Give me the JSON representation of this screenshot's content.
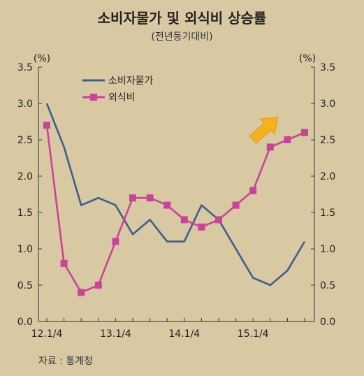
{
  "chart_data": {
    "type": "line",
    "title": "소비자물가 및 외식비 상승률",
    "subtitle": "(전년동기대비)",
    "left_unit": "(%)",
    "right_unit": "(%)",
    "source": "자료 : 통계청",
    "x": [
      "12.1/4",
      "12.2/4",
      "12.3/4",
      "12.4/4",
      "13.1/4",
      "13.2/4",
      "13.3/4",
      "13.4/4",
      "14.1/4",
      "14.2/4",
      "14.3/4",
      "14.4/4",
      "15.1/4",
      "15.2/4",
      "15.3/4",
      "15.4/4"
    ],
    "xtick_labels": [
      "12.1/4",
      "13.1/4",
      "14.1/4",
      "15.1/4"
    ],
    "xtick_index": [
      0,
      4,
      8,
      12
    ],
    "yticks": [
      "0.0",
      "0.5",
      "1.0",
      "1.5",
      "2.0",
      "2.5",
      "3.0",
      "3.5"
    ],
    "ylim": [
      0,
      3.5
    ],
    "series": [
      {
        "name": "소비자물가",
        "color": "#3a5f8c",
        "marker": "none",
        "values": [
          3.0,
          2.4,
          1.6,
          1.7,
          1.6,
          1.2,
          1.4,
          1.1,
          1.1,
          1.6,
          1.4,
          1.0,
          0.6,
          0.5,
          0.7,
          1.1
        ]
      },
      {
        "name": "외식비",
        "color": "#c8439a",
        "marker": "square",
        "values": [
          2.7,
          0.8,
          0.4,
          0.5,
          1.1,
          1.7,
          1.7,
          1.6,
          1.4,
          1.3,
          1.4,
          1.6,
          1.8,
          2.4,
          2.5,
          2.6
        ]
      }
    ],
    "legend_position": "top-left",
    "grid": false,
    "annotation": "upward-arrow",
    "arrow_color": "#f5b21e"
  }
}
